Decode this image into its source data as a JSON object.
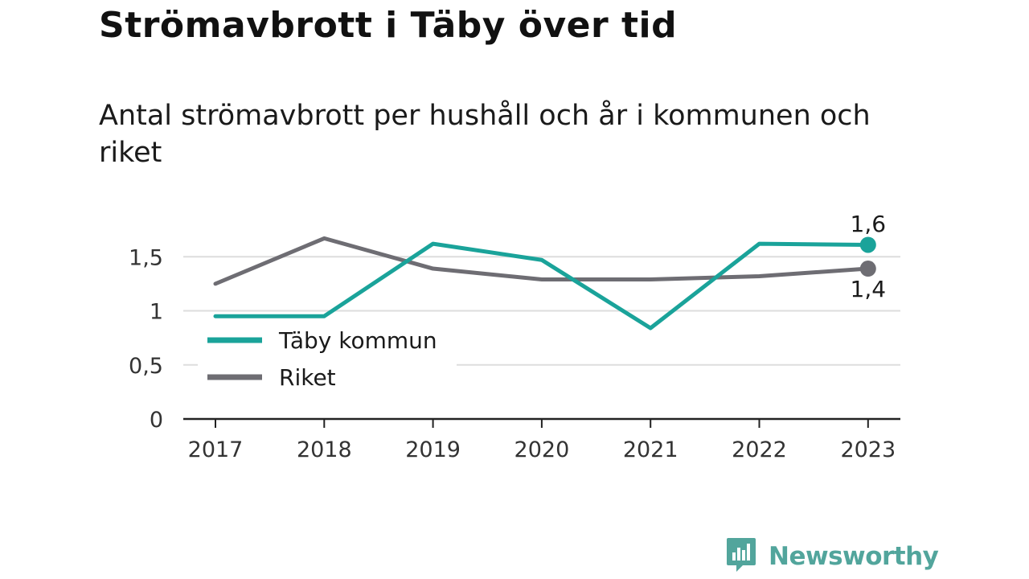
{
  "header": {
    "title": "Strömavbrott i Täby över tid",
    "subtitle": "Antal strömavbrott per hushåll och år i kommunen och riket"
  },
  "brand": {
    "name": "Newsworthy",
    "icon": "newsworthy-logo-icon"
  },
  "colors": {
    "taby": "#1aa39a",
    "riket": "#6e6d73",
    "grid": "#dddddd",
    "axis": "#222222",
    "brand": "#52a59c"
  },
  "chart_data": {
    "type": "line",
    "x": [
      "2017",
      "2018",
      "2019",
      "2020",
      "2021",
      "2022",
      "2023"
    ],
    "series": [
      {
        "name": "Täby kommun",
        "values": [
          0.95,
          0.95,
          1.62,
          1.47,
          0.84,
          1.62,
          1.61
        ]
      },
      {
        "name": "Riket",
        "values": [
          1.25,
          1.67,
          1.39,
          1.29,
          1.29,
          1.32,
          1.39
        ]
      }
    ],
    "y_ticks": [
      0,
      0.5,
      1,
      1.5
    ],
    "y_tick_labels": [
      "0",
      "0,5",
      "1",
      "1,5"
    ],
    "ylim": [
      0,
      1.85
    ],
    "grid": true,
    "legend": "bottom-left",
    "end_labels": [
      "1,6",
      "1,4"
    ],
    "xlabel": "",
    "ylabel": ""
  }
}
